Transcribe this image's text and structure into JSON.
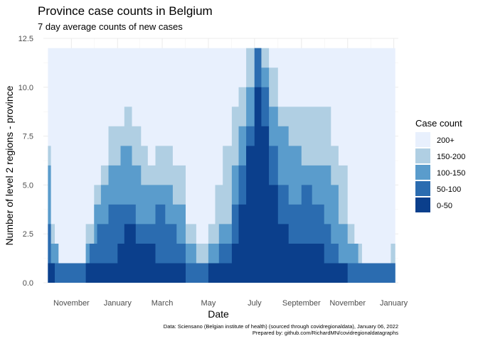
{
  "chart_data": {
    "type": "area",
    "title": "Province case counts in Belgium",
    "subtitle": "7 day average counts of new cases",
    "xlabel": "Date",
    "ylabel": "Number of level 2 regions - province",
    "x_ticks": [
      "November",
      "January",
      "March",
      "May",
      "July",
      "September",
      "November",
      "January"
    ],
    "x_tick_dates": [
      "2020-11-01",
      "2021-01-01",
      "2021-03-01",
      "2021-05-01",
      "2021-07-01",
      "2021-09-01",
      "2021-11-01",
      "2022-01-01"
    ],
    "xlim": [
      "2020-09-25",
      "2022-01-07"
    ],
    "y_ticks": [
      "0.0",
      "2.5",
      "5.0",
      "7.5",
      "10.0",
      "12.5"
    ],
    "ylim": [
      0,
      12.5
    ],
    "legend_title": "Case count",
    "legend_position": "right",
    "grid": true,
    "series": [
      {
        "name": "200+",
        "color": "#e8f0fd",
        "values": [
          [
            "2020-10-01",
            12
          ],
          [
            "2022-01-03",
            12
          ]
        ]
      },
      {
        "name": "150-200",
        "color": "#b0cfe3",
        "values": [
          [
            "2020-10-01",
            7
          ],
          [
            "2020-10-05",
            3
          ],
          [
            "2020-10-10",
            1
          ],
          [
            "2020-10-20",
            0
          ],
          [
            "2020-11-15",
            1
          ],
          [
            "2020-11-20",
            3
          ],
          [
            "2020-12-01",
            5
          ],
          [
            "2020-12-10",
            6
          ],
          [
            "2020-12-20",
            8
          ],
          [
            "2021-01-10",
            9
          ],
          [
            "2021-01-20",
            8
          ],
          [
            "2021-02-01",
            7
          ],
          [
            "2021-02-10",
            6
          ],
          [
            "2021-02-20",
            7
          ],
          [
            "2021-03-01",
            7
          ],
          [
            "2021-03-15",
            6
          ],
          [
            "2021-04-01",
            3
          ],
          [
            "2021-04-15",
            2
          ],
          [
            "2021-05-01",
            3
          ],
          [
            "2021-05-10",
            5
          ],
          [
            "2021-05-20",
            7
          ],
          [
            "2021-06-01",
            9
          ],
          [
            "2021-06-10",
            10
          ],
          [
            "2021-06-20",
            12
          ],
          [
            "2021-07-01",
            12
          ],
          [
            "2021-07-10",
            12
          ],
          [
            "2021-07-20",
            11
          ],
          [
            "2021-08-01",
            9
          ],
          [
            "2021-08-15",
            9
          ],
          [
            "2021-09-01",
            9
          ],
          [
            "2021-09-15",
            9
          ],
          [
            "2021-10-01",
            9
          ],
          [
            "2021-10-10",
            7
          ],
          [
            "2021-10-20",
            6
          ],
          [
            "2021-11-01",
            3
          ],
          [
            "2021-11-10",
            2
          ],
          [
            "2021-11-20",
            1
          ],
          [
            "2021-12-01",
            1
          ],
          [
            "2021-12-20",
            1
          ],
          [
            "2021-12-28",
            2
          ],
          [
            "2022-01-03",
            0
          ]
        ]
      },
      {
        "name": "100-150",
        "color": "#5a9ccc",
        "values": [
          [
            "2020-10-01",
            6
          ],
          [
            "2020-10-05",
            2
          ],
          [
            "2020-10-15",
            1
          ],
          [
            "2020-11-01",
            1
          ],
          [
            "2020-11-20",
            2
          ],
          [
            "2020-12-01",
            4
          ],
          [
            "2020-12-10",
            5
          ],
          [
            "2020-12-20",
            6
          ],
          [
            "2021-01-05",
            7
          ],
          [
            "2021-01-20",
            6
          ],
          [
            "2021-02-01",
            5
          ],
          [
            "2021-02-15",
            5
          ],
          [
            "2021-03-01",
            5
          ],
          [
            "2021-03-15",
            4
          ],
          [
            "2021-04-01",
            2
          ],
          [
            "2021-04-15",
            1
          ],
          [
            "2021-05-01",
            2
          ],
          [
            "2021-05-15",
            3
          ],
          [
            "2021-06-01",
            6
          ],
          [
            "2021-06-10",
            8
          ],
          [
            "2021-06-20",
            10
          ],
          [
            "2021-07-01",
            12
          ],
          [
            "2021-07-10",
            11
          ],
          [
            "2021-07-20",
            9
          ],
          [
            "2021-08-01",
            8
          ],
          [
            "2021-08-15",
            7
          ],
          [
            "2021-09-01",
            6
          ],
          [
            "2021-09-15",
            6
          ],
          [
            "2021-10-01",
            6
          ],
          [
            "2021-10-10",
            5
          ],
          [
            "2021-10-20",
            3
          ],
          [
            "2021-11-01",
            2
          ],
          [
            "2021-11-15",
            1
          ],
          [
            "2021-12-01",
            1
          ],
          [
            "2021-12-20",
            1
          ],
          [
            "2022-01-03",
            0
          ]
        ]
      },
      {
        "name": "50-100",
        "color": "#2b6cb0",
        "values": [
          [
            "2020-10-01",
            3
          ],
          [
            "2020-10-05",
            1
          ],
          [
            "2020-10-20",
            1
          ],
          [
            "2020-11-10",
            1
          ],
          [
            "2020-11-25",
            2
          ],
          [
            "2020-12-05",
            3
          ],
          [
            "2020-12-20",
            4
          ],
          [
            "2021-01-10",
            4
          ],
          [
            "2021-01-25",
            3
          ],
          [
            "2021-02-10",
            3
          ],
          [
            "2021-02-20",
            4
          ],
          [
            "2021-03-05",
            3
          ],
          [
            "2021-03-20",
            2
          ],
          [
            "2021-04-01",
            1
          ],
          [
            "2021-04-20",
            1
          ],
          [
            "2021-05-01",
            1
          ],
          [
            "2021-05-15",
            2
          ],
          [
            "2021-06-01",
            4
          ],
          [
            "2021-06-10",
            6
          ],
          [
            "2021-06-20",
            8
          ],
          [
            "2021-07-01",
            12
          ],
          [
            "2021-07-10",
            10
          ],
          [
            "2021-07-20",
            7
          ],
          [
            "2021-08-01",
            5
          ],
          [
            "2021-08-15",
            4
          ],
          [
            "2021-09-01",
            5
          ],
          [
            "2021-09-15",
            4
          ],
          [
            "2021-10-01",
            3
          ],
          [
            "2021-10-10",
            2
          ],
          [
            "2021-10-20",
            1
          ],
          [
            "2021-11-01",
            1
          ],
          [
            "2021-11-20",
            1
          ],
          [
            "2021-12-10",
            1
          ],
          [
            "2022-01-03",
            0
          ]
        ]
      },
      {
        "name": "0-50",
        "color": "#0b3f8c",
        "values": [
          [
            "2020-10-01",
            1
          ],
          [
            "2020-10-10",
            0
          ],
          [
            "2020-10-25",
            0
          ],
          [
            "2020-11-10",
            0
          ],
          [
            "2020-11-20",
            1
          ],
          [
            "2020-12-20",
            1
          ],
          [
            "2021-01-01",
            2
          ],
          [
            "2021-01-10",
            3
          ],
          [
            "2021-01-25",
            2
          ],
          [
            "2021-02-10",
            2
          ],
          [
            "2021-02-20",
            1
          ],
          [
            "2021-03-10",
            1
          ],
          [
            "2021-04-01",
            0
          ],
          [
            "2021-05-01",
            1
          ],
          [
            "2021-05-20",
            1
          ],
          [
            "2021-06-01",
            2
          ],
          [
            "2021-06-10",
            4
          ],
          [
            "2021-06-20",
            7
          ],
          [
            "2021-07-01",
            10
          ],
          [
            "2021-07-10",
            8
          ],
          [
            "2021-07-20",
            5
          ],
          [
            "2021-08-01",
            3
          ],
          [
            "2021-08-15",
            2
          ],
          [
            "2021-09-01",
            2
          ],
          [
            "2021-09-15",
            2
          ],
          [
            "2021-10-01",
            1
          ],
          [
            "2021-10-15",
            1
          ],
          [
            "2021-11-01",
            0
          ],
          [
            "2021-12-01",
            0
          ],
          [
            "2022-01-03",
            0
          ]
        ]
      }
    ],
    "caption": [
      "Data: Sciensano (Belgian institute of health) (sourced through covidregionaldata), January 06, 2022",
      "Prepared by: github.com/RichardMN/covidregionaldatagraphs"
    ]
  }
}
